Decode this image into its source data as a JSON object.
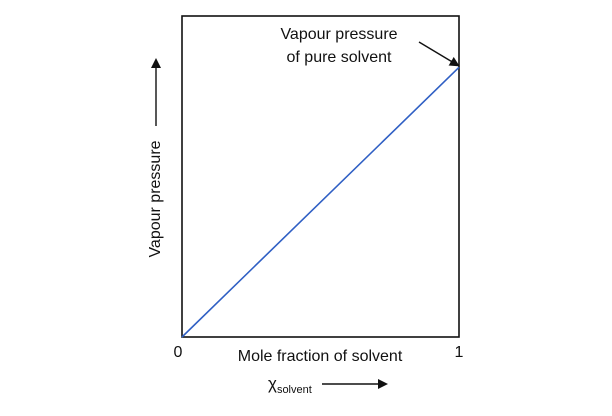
{
  "chart_data": {
    "type": "line",
    "xlabel": "Mole fraction of solvent",
    "ylabel": "Vapour pressure",
    "xlabel_symbol": "χ",
    "xlabel_subscript": "solvent",
    "xticks": [
      "0",
      "1"
    ],
    "xlim": [
      0,
      1
    ],
    "ylim": [
      0,
      1
    ],
    "grid": false,
    "series": [
      {
        "color": "#2f5fc4",
        "x": [
          0,
          1
        ],
        "y": [
          0,
          0.84
        ]
      }
    ],
    "annotation": {
      "line1": "Vapour pressure",
      "line2": "of pure solvent",
      "x": 1,
      "y": 0.84
    }
  }
}
